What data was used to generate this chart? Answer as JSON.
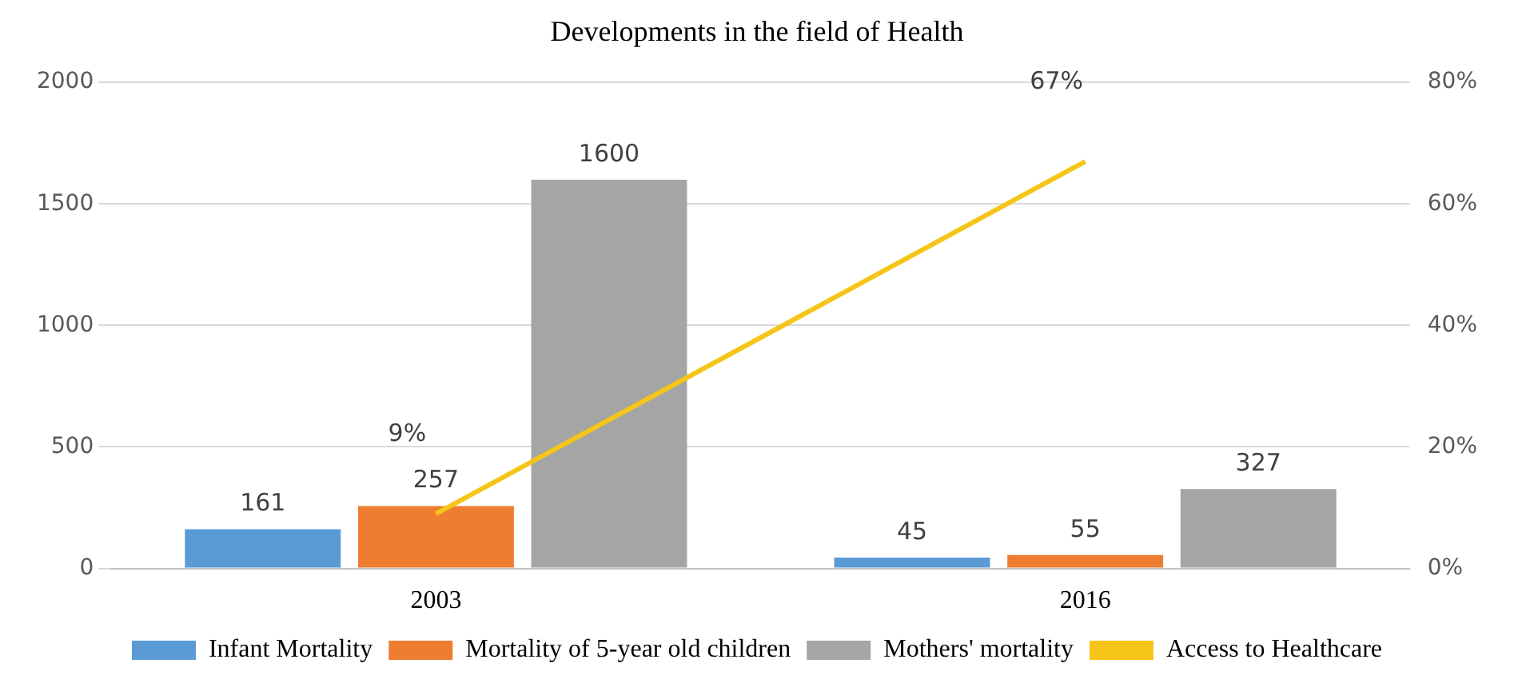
{
  "chart_data": {
    "type": "bar",
    "title": "Developments in the field of Health",
    "categories": [
      "2003",
      "2016"
    ],
    "series": [
      {
        "name": "Infant Mortality",
        "color": "#5b9bd5",
        "values": [
          161,
          45
        ]
      },
      {
        "name": "Mortality of 5-year old children",
        "color": "#ed7d31",
        "values": [
          257,
          55
        ]
      },
      {
        "name": "Mothers' mortality",
        "color": "#a5a5a5",
        "values": [
          1600,
          327
        ]
      },
      {
        "name": "Access to Healthcare",
        "color": "#f5c518",
        "type": "line",
        "axis": "y2",
        "values": [
          9,
          67
        ],
        "value_labels": [
          "9%",
          "67%"
        ]
      }
    ],
    "ylim": [
      0,
      2000
    ],
    "yticks": [
      0,
      500,
      1000,
      1500,
      2000
    ],
    "y2lim": [
      0,
      80
    ],
    "y2ticks": [
      {
        "value": 0,
        "label": "0%"
      },
      {
        "value": 20,
        "label": "20%"
      },
      {
        "value": 40,
        "label": "40%"
      },
      {
        "value": 60,
        "label": "60%"
      },
      {
        "value": 80,
        "label": "80%"
      }
    ],
    "grid": "y",
    "legend": "bottom",
    "data_labels": true,
    "marker": "none"
  }
}
